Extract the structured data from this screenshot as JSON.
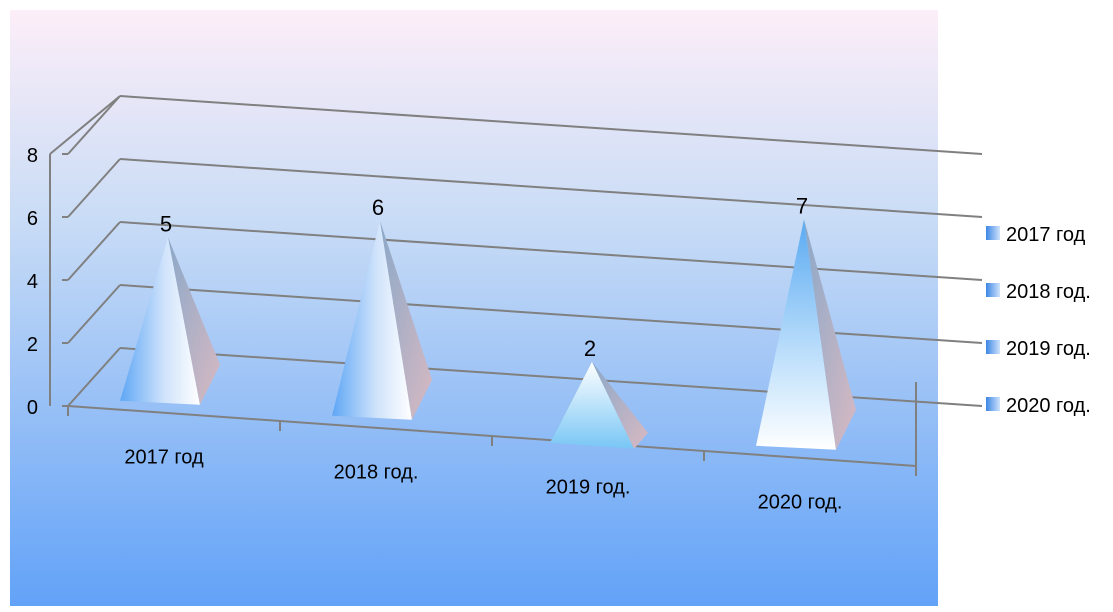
{
  "chart_data": {
    "type": "bar",
    "style": "3d-pyramid",
    "title": "",
    "xlabel": "",
    "ylabel": "",
    "categories": [
      "2017 год",
      "2018 год.",
      "2019 год.",
      "2020 год."
    ],
    "values": [
      5,
      6,
      2,
      7
    ],
    "ylim": [
      0,
      8
    ],
    "yticks": [
      "0",
      "2",
      "4",
      "6",
      "8"
    ],
    "data_labels": [
      "5",
      "6",
      "2",
      "7"
    ],
    "grid": true,
    "legend": {
      "placement": "right",
      "entries": [
        "2017 год",
        "2018 год.",
        "2019 год.",
        "2020 год."
      ]
    },
    "colors": {
      "plot_bg_top": "#fdeef8",
      "plot_bg_bottom": "#62a2f7",
      "grid_line": "#808080",
      "legend_swatch": "#5aa0f0"
    }
  }
}
